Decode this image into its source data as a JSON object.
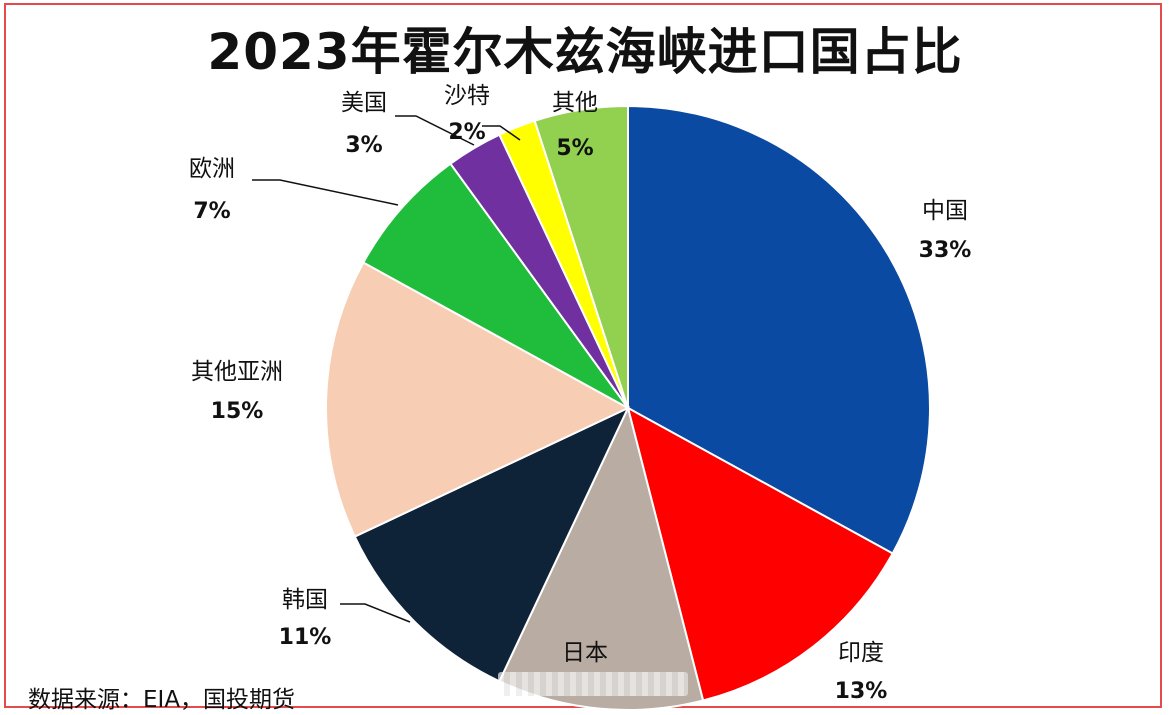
{
  "chart_data": {
    "type": "pie",
    "title": "2023年霍尔木兹海峡进口国占比",
    "source": "数据来源：EIA，国投期货",
    "slices": [
      {
        "label": "中国",
        "value": 33,
        "value_label": "33%",
        "color": "#0b4aa2"
      },
      {
        "label": "印度",
        "value": 13,
        "value_label": "13%",
        "color": "#ff0000"
      },
      {
        "label": "日本",
        "value": 11,
        "value_label": "",
        "color": "#b9aca3"
      },
      {
        "label": "韩国",
        "value": 11,
        "value_label": "11%",
        "color": "#0f2338"
      },
      {
        "label": "其他亚洲",
        "value": 15,
        "value_label": "15%",
        "color": "#f7cdb3"
      },
      {
        "label": "欧洲",
        "value": 7,
        "value_label": "7%",
        "color": "#1fbd3b"
      },
      {
        "label": "美国",
        "value": 3,
        "value_label": "3%",
        "color": "#7030a0"
      },
      {
        "label": "沙特",
        "value": 2,
        "value_label": "2%",
        "color": "#ffff00"
      },
      {
        "label": "其他",
        "value": 5,
        "value_label": "5%",
        "color": "#92d050"
      }
    ]
  }
}
